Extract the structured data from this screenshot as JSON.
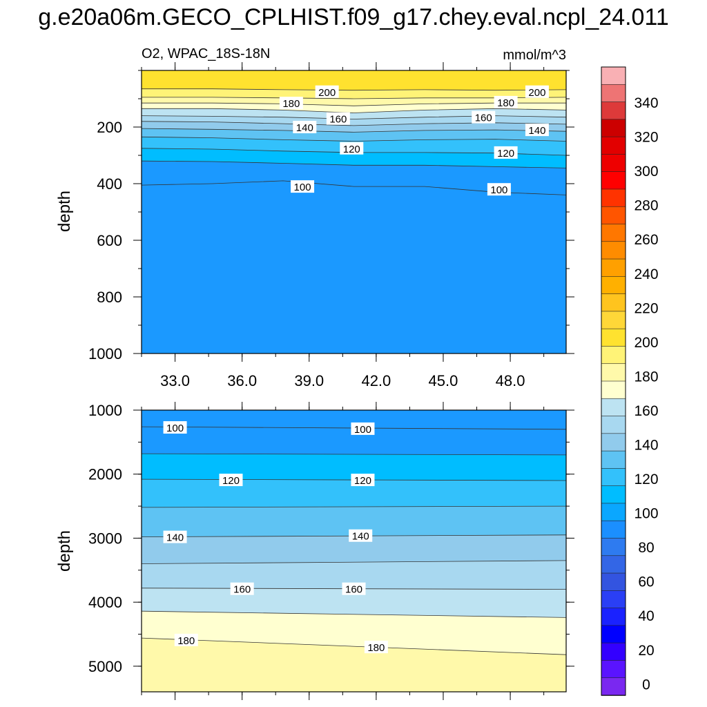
{
  "title": "g.e20a06m.GECO_CPLHIST.f09_g17.chey.eval.ncpl_24.011",
  "chart_data": [
    {
      "type": "contour",
      "left_label": "O2, WPAC_18S-18N",
      "right_label": "mmol/m^3",
      "ylabel": "depth",
      "x_range": [
        31.5,
        50.5
      ],
      "x_ticks": [
        "33.0",
        "36.0",
        "39.0",
        "42.0",
        "45.0",
        "48.0"
      ],
      "x_tick_values": [
        33,
        36,
        39,
        42,
        45,
        48
      ],
      "y_range": [
        0,
        1000
      ],
      "y_ticks": [
        "200",
        "400",
        "600",
        "800",
        "1000"
      ],
      "y_tick_values": [
        200,
        400,
        600,
        800,
        1000
      ],
      "contours": [
        {
          "level": 200,
          "depth": [
            65,
            65,
            68,
            70,
            68,
            70,
            68
          ]
        },
        {
          "level": 190,
          "depth": [
            95,
            95,
            97,
            100,
            97,
            97,
            95
          ]
        },
        {
          "level": 180,
          "depth": [
            115,
            115,
            118,
            125,
            118,
            115,
            115
          ]
        },
        {
          "level": 170,
          "depth": [
            135,
            135,
            140,
            150,
            140,
            135,
            140
          ]
        },
        {
          "level": 160,
          "depth": [
            160,
            162,
            165,
            172,
            165,
            160,
            165
          ]
        },
        {
          "level": 150,
          "depth": [
            180,
            182,
            188,
            195,
            188,
            185,
            190
          ]
        },
        {
          "level": 140,
          "depth": [
            205,
            208,
            212,
            218,
            212,
            210,
            215
          ]
        },
        {
          "level": 130,
          "depth": [
            235,
            238,
            245,
            250,
            245,
            243,
            250
          ]
        },
        {
          "level": 120,
          "depth": [
            275,
            278,
            285,
            290,
            290,
            292,
            300
          ]
        },
        {
          "level": 110,
          "depth": [
            320,
            322,
            328,
            335,
            335,
            340,
            345
          ]
        },
        {
          "level": 100,
          "depth": [
            405,
            400,
            390,
            410,
            410,
            430,
            440
          ]
        }
      ],
      "labels": [
        {
          "text": "200",
          "x": 39.8,
          "depth": 75
        },
        {
          "text": "200",
          "x": 49.2,
          "depth": 75
        },
        {
          "text": "180",
          "x": 38.2,
          "depth": 115
        },
        {
          "text": "180",
          "x": 47.8,
          "depth": 112
        },
        {
          "text": "160",
          "x": 40.3,
          "depth": 170
        },
        {
          "text": "160",
          "x": 46.8,
          "depth": 165
        },
        {
          "text": "140",
          "x": 38.8,
          "depth": 200
        },
        {
          "text": "140",
          "x": 49.2,
          "depth": 210
        },
        {
          "text": "120",
          "x": 40.9,
          "depth": 275
        },
        {
          "text": "120",
          "x": 47.8,
          "depth": 290
        },
        {
          "text": "100",
          "x": 38.7,
          "depth": 410
        },
        {
          "text": "100",
          "x": 47.5,
          "depth": 420
        }
      ]
    },
    {
      "type": "contour",
      "ylabel": "depth",
      "x_range": [
        31.5,
        50.5
      ],
      "y_range": [
        1000,
        5400
      ],
      "y_ticks": [
        "1000",
        "2000",
        "3000",
        "4000",
        "5000"
      ],
      "y_tick_values": [
        1000,
        2000,
        3000,
        4000,
        5000
      ],
      "contours": [
        {
          "level": 100,
          "depth": [
            1260,
            1300
          ]
        },
        {
          "level": 110,
          "depth": [
            1680,
            1700
          ]
        },
        {
          "level": 120,
          "depth": [
            2080,
            2100
          ]
        },
        {
          "level": 130,
          "depth": [
            2520,
            2500
          ]
        },
        {
          "level": 140,
          "depth": [
            2980,
            2950
          ]
        },
        {
          "level": 150,
          "depth": [
            3400,
            3350
          ]
        },
        {
          "level": 160,
          "depth": [
            3780,
            3800
          ]
        },
        {
          "level": 170,
          "depth": [
            4140,
            4240
          ]
        },
        {
          "level": 180,
          "depth": [
            4560,
            4820
          ]
        }
      ],
      "labels": [
        {
          "text": "100",
          "x": 33.0,
          "depth": 1270
        },
        {
          "text": "100",
          "x": 41.4,
          "depth": 1290
        },
        {
          "text": "120",
          "x": 35.5,
          "depth": 2090
        },
        {
          "text": "120",
          "x": 41.4,
          "depth": 2090
        },
        {
          "text": "140",
          "x": 33.0,
          "depth": 2980
        },
        {
          "text": "140",
          "x": 41.3,
          "depth": 2960
        },
        {
          "text": "160",
          "x": 36.0,
          "depth": 3790
        },
        {
          "text": "160",
          "x": 41.0,
          "depth": 3790
        },
        {
          "text": "180",
          "x": 33.5,
          "depth": 4590
        },
        {
          "text": "180",
          "x": 42.0,
          "depth": 4700
        }
      ]
    }
  ],
  "colorbar": {
    "labels": [
      "340",
      "320",
      "300",
      "280",
      "260",
      "240",
      "220",
      "200",
      "180",
      "160",
      "140",
      "120",
      "100",
      "80",
      "60",
      "40",
      "20",
      "0"
    ],
    "colors": [
      "#f9b0b4",
      "#ee7474",
      "#dd3a3a",
      "#cc0000",
      "#e20000",
      "#ee0000",
      "#ff0000",
      "#ff3300",
      "#ff5500",
      "#ff7700",
      "#ff8c00",
      "#ffa000",
      "#ffb000",
      "#ffc41e",
      "#ffd738",
      "#ffe22f",
      "#fff377",
      "#fff9aa",
      "#ffffd0",
      "#bde3f2",
      "#a8d8f0",
      "#91cbec",
      "#5ec3f3",
      "#33c1fb",
      "#00bdff",
      "#0aa7ff",
      "#1b8fff",
      "#2e7bf0",
      "#3366e6",
      "#3354e0",
      "#2a3ff5",
      "#1a22ff",
      "#0000ff",
      "#3300ff",
      "#5a14ff",
      "#7a28f0"
    ]
  }
}
